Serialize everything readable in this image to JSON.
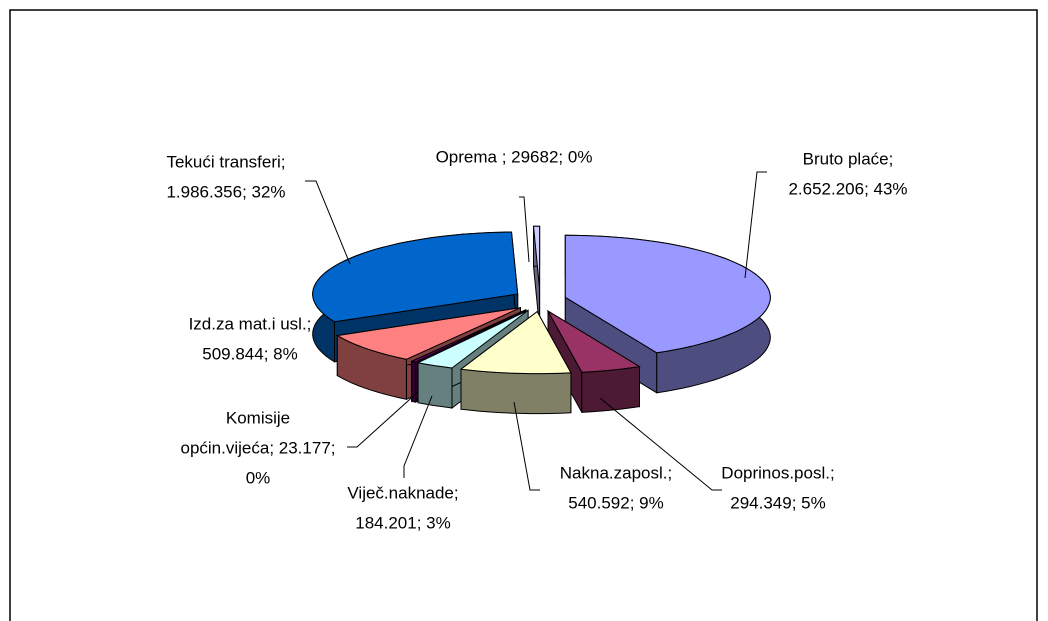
{
  "chart_data": {
    "type": "pie3d",
    "values": [
      2652206,
      294349,
      540592,
      184201,
      23177,
      509844,
      1986356,
      29682
    ],
    "data_labels": [
      [
        "Bruto plaće;",
        "2.652.206; 43%"
      ],
      [
        "Doprinos.posl.;",
        "294.349; 5%"
      ],
      [
        "Nakna.zaposl.;",
        "540.592; 9%"
      ],
      [
        "Viječ.naknade;",
        "184.201; 3%"
      ],
      [
        "Komisije",
        "općin.vijeća; 23.177;",
        "0%"
      ],
      [
        "Izd.za mat.i usl.;",
        "509.844; 8%"
      ],
      [
        "Tekući transferi;",
        "1.986.356; 32%"
      ],
      [
        "Oprema ; 29682; 0%"
      ]
    ],
    "colors": [
      "#9999ff",
      "#993366",
      "#ffffcc",
      "#ccffff",
      "#660066",
      "#ff8080",
      "#0066cc",
      "#ccccff"
    ]
  }
}
